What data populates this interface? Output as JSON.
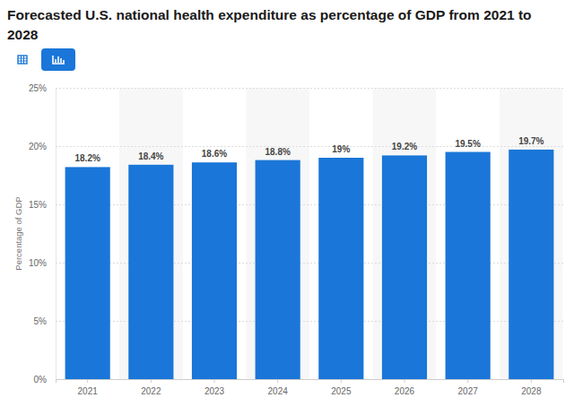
{
  "chart_data": {
    "type": "bar",
    "title": "Forecasted U.S. national health expenditure as percentage of GDP from 2021 to 2028",
    "y_label": "Percentage of GDP",
    "categories": [
      "2021",
      "2022",
      "2023",
      "2024",
      "2025",
      "2026",
      "2027",
      "2028"
    ],
    "values": [
      18.2,
      18.4,
      18.6,
      18.8,
      19,
      19.2,
      19.5,
      19.7
    ],
    "value_labels": [
      "18.2%",
      "18.4%",
      "18.6%",
      "18.8%",
      "19%",
      "19.2%",
      "19.5%",
      "19.7%"
    ],
    "color": "#1a76d8",
    "ylim": [
      0,
      25
    ],
    "yticks": [
      {
        "value": 0,
        "label": "0%"
      },
      {
        "value": 5,
        "label": "5%"
      },
      {
        "value": 10,
        "label": "10%"
      },
      {
        "value": 15,
        "label": "15%"
      },
      {
        "value": 20,
        "label": "20%"
      },
      {
        "value": 25,
        "label": "25%"
      }
    ],
    "grid": true,
    "data_labels": true
  }
}
